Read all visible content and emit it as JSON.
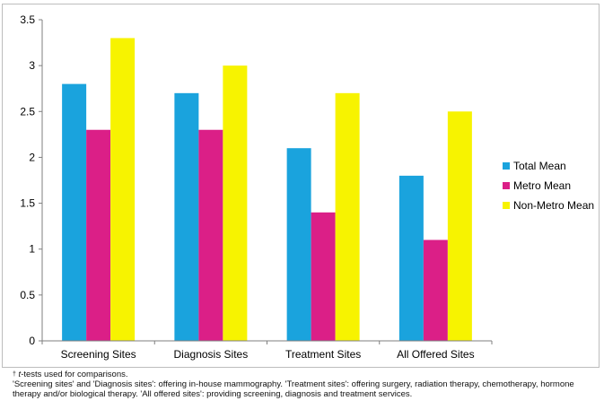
{
  "chart_data": {
    "type": "bar",
    "categories": [
      "Screening  Sites",
      "Diagnosis Sites",
      "Treatment Sites",
      "All Offered Sites"
    ],
    "series": [
      {
        "name": "Total Mean",
        "color": "#1aa3dd",
        "values": [
          2.8,
          2.7,
          2.1,
          1.8
        ]
      },
      {
        "name": "Metro Mean",
        "color": "#db1f87",
        "values": [
          2.3,
          2.3,
          1.4,
          1.1
        ]
      },
      {
        "name": "Non-Metro Mean",
        "color": "#f7f300",
        "values": [
          3.3,
          3.0,
          2.7,
          2.5
        ]
      }
    ],
    "ylim": [
      0,
      3.5
    ],
    "yticks": [
      "0",
      "0.5",
      "1",
      "1.5",
      "2",
      "2.5",
      "3",
      "3.5"
    ],
    "grid": false,
    "legend_position": "right"
  },
  "footnotes": {
    "dagger": "†",
    "ttest_italic": "t",
    "ttest_rest": "-tests used for comparisons.",
    "definitions": "'Screening sites' and 'Diagnosis sites': offering in-house mammography. 'Treatment sites': offering surgery, radiation therapy, chemotherapy, hormone therapy and/or biological therapy. 'All offered sites': providing screening, diagnosis and treatment services."
  }
}
